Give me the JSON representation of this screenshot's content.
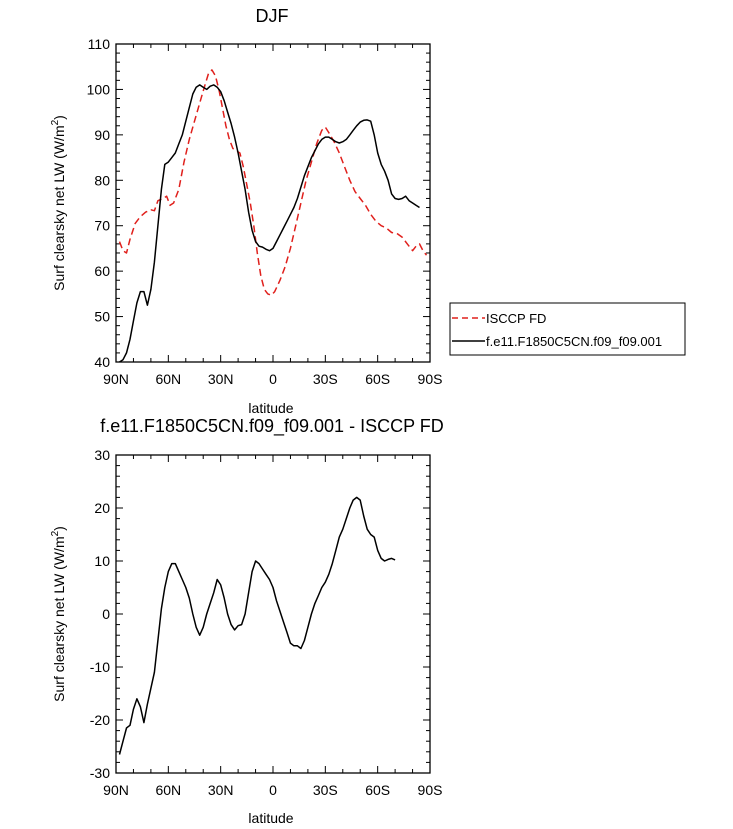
{
  "chart_data": [
    {
      "type": "line",
      "title": "DJF",
      "xlabel": "latitude",
      "ylabel": "Surf clearsky net LW (W/m²)",
      "ylabel_main": "Surf clearsky net LW (W/m",
      "ylabel_sup": "2",
      "ylabel_end": ")",
      "xlim": [
        90,
        -90
      ],
      "ylim": [
        40,
        110
      ],
      "x_ticks": [
        {
          "value": 90,
          "label": "90N"
        },
        {
          "value": 60,
          "label": "60N"
        },
        {
          "value": 30,
          "label": "30N"
        },
        {
          "value": 0,
          "label": "0"
        },
        {
          "value": -30,
          "label": "30S"
        },
        {
          "value": -60,
          "label": "60S"
        },
        {
          "value": -90,
          "label": "90S"
        }
      ],
      "y_ticks": [
        40,
        50,
        60,
        70,
        80,
        90,
        100,
        110
      ],
      "legend_position": "right",
      "series": [
        {
          "name": "ISCCP FD",
          "color": "#e0201c",
          "dash": "dashed",
          "points": [
            [
              88,
              66.5
            ],
            [
              86,
              64.5
            ],
            [
              84,
              64
            ],
            [
              82,
              67
            ],
            [
              79,
              70.5
            ],
            [
              76,
              72
            ],
            [
              73,
              73
            ],
            [
              70,
              73.5
            ],
            [
              68,
              73.3
            ],
            [
              66,
              75.5
            ],
            [
              63,
              76
            ],
            [
              61,
              76.5
            ],
            [
              59,
              74.5
            ],
            [
              57,
              75
            ],
            [
              54,
              78
            ],
            [
              51,
              84
            ],
            [
              48,
              89
            ],
            [
              45,
              93
            ],
            [
              42,
              97
            ],
            [
              39,
              101
            ],
            [
              37,
              103.5
            ],
            [
              35,
              104.3
            ],
            [
              33,
              103
            ],
            [
              31,
              100
            ],
            [
              29,
              96
            ],
            [
              27,
              92
            ],
            [
              25,
              89
            ],
            [
              23,
              87
            ],
            [
              21,
              86.5
            ],
            [
              19,
              86
            ],
            [
              17,
              83
            ],
            [
              15,
              79
            ],
            [
              13,
              75
            ],
            [
              11,
              70
            ],
            [
              9,
              64
            ],
            [
              7,
              59
            ],
            [
              5,
              56
            ],
            [
              3,
              55
            ],
            [
              1,
              54.7
            ],
            [
              -1,
              55.5
            ],
            [
              -4,
              58
            ],
            [
              -7,
              61
            ],
            [
              -10,
              65
            ],
            [
              -13,
              70
            ],
            [
              -16,
              75
            ],
            [
              -19,
              80
            ],
            [
              -22,
              84
            ],
            [
              -25,
              88
            ],
            [
              -28,
              91
            ],
            [
              -30,
              91.7
            ],
            [
              -32,
              90.5
            ],
            [
              -35,
              88.5
            ],
            [
              -38,
              86
            ],
            [
              -41,
              83
            ],
            [
              -44,
              80
            ],
            [
              -47,
              77.5
            ],
            [
              -50,
              76
            ],
            [
              -53,
              74.5
            ],
            [
              -56,
              72.5
            ],
            [
              -59,
              71
            ],
            [
              -62,
              70
            ],
            [
              -65,
              69.5
            ],
            [
              -68,
              68.5
            ],
            [
              -71,
              68.3
            ],
            [
              -74,
              67.5
            ],
            [
              -77,
              66
            ],
            [
              -80,
              64.5
            ],
            [
              -82,
              65.5
            ],
            [
              -84,
              66
            ],
            [
              -86,
              64.5
            ],
            [
              -88,
              63.5
            ]
          ]
        },
        {
          "name": "f.e11.F1850C5CN.f09_f09.001",
          "color": "#000000",
          "dash": "solid",
          "points": [
            [
              88,
              40
            ],
            [
              86,
              40.5
            ],
            [
              84,
              42
            ],
            [
              82,
              45
            ],
            [
              80,
              49
            ],
            [
              78,
              53
            ],
            [
              76,
              55.5
            ],
            [
              74,
              55.5
            ],
            [
              72,
              52.5
            ],
            [
              70,
              56
            ],
            [
              68,
              62
            ],
            [
              66,
              70
            ],
            [
              64,
              78
            ],
            [
              62,
              83.5
            ],
            [
              60,
              84
            ],
            [
              58,
              85
            ],
            [
              56,
              86
            ],
            [
              54,
              88
            ],
            [
              52,
              90
            ],
            [
              50,
              93
            ],
            [
              48,
              96
            ],
            [
              46,
              99
            ],
            [
              44,
              100.5
            ],
            [
              42,
              101
            ],
            [
              40,
              100.5
            ],
            [
              38,
              100
            ],
            [
              36,
              100.7
            ],
            [
              34,
              101
            ],
            [
              32,
              100.5
            ],
            [
              30,
              99.5
            ],
            [
              28,
              97.5
            ],
            [
              26,
              95
            ],
            [
              24,
              92.5
            ],
            [
              22,
              89.5
            ],
            [
              20,
              86
            ],
            [
              18,
              82
            ],
            [
              16,
              78
            ],
            [
              14,
              73
            ],
            [
              12,
              69
            ],
            [
              10,
              66.5
            ],
            [
              8,
              65.5
            ],
            [
              6,
              65.3
            ],
            [
              4,
              64.8
            ],
            [
              2,
              64.5
            ],
            [
              0,
              65
            ],
            [
              -2,
              66.5
            ],
            [
              -4,
              68
            ],
            [
              -6,
              69.5
            ],
            [
              -8,
              71
            ],
            [
              -10,
              72.5
            ],
            [
              -12,
              74
            ],
            [
              -14,
              76
            ],
            [
              -16,
              78.5
            ],
            [
              -18,
              81
            ],
            [
              -20,
              83
            ],
            [
              -22,
              85
            ],
            [
              -24,
              86.5
            ],
            [
              -26,
              88
            ],
            [
              -28,
              89
            ],
            [
              -30,
              89.5
            ],
            [
              -32,
              89.5
            ],
            [
              -34,
              89
            ],
            [
              -36,
              88.5
            ],
            [
              -38,
              88.2
            ],
            [
              -40,
              88.5
            ],
            [
              -42,
              89
            ],
            [
              -44,
              90
            ],
            [
              -46,
              91
            ],
            [
              -48,
              92
            ],
            [
              -50,
              92.8
            ],
            [
              -52,
              93.2
            ],
            [
              -54,
              93.3
            ],
            [
              -56,
              93
            ],
            [
              -58,
              90
            ],
            [
              -60,
              86
            ],
            [
              -62,
              83.5
            ],
            [
              -64,
              82
            ],
            [
              -66,
              80
            ],
            [
              -68,
              77
            ],
            [
              -70,
              76
            ],
            [
              -72,
              75.8
            ],
            [
              -74,
              76
            ],
            [
              -76,
              76.5
            ],
            [
              -78,
              75.5
            ],
            [
              -80,
              75
            ],
            [
              -82,
              74.5
            ],
            [
              -84,
              74
            ]
          ]
        }
      ]
    },
    {
      "type": "line",
      "title": "f.e11.F1850C5CN.f09_f09.001 - ISCCP FD",
      "xlabel": "latitude",
      "ylabel": "Surf clearsky net LW (W/m²)",
      "ylabel_main": "Surf clearsky net LW (W/m",
      "ylabel_sup": "2",
      "ylabel_end": ")",
      "xlim": [
        90,
        -90
      ],
      "ylim": [
        -30,
        30
      ],
      "x_ticks": [
        {
          "value": 90,
          "label": "90N"
        },
        {
          "value": 60,
          "label": "60N"
        },
        {
          "value": 30,
          "label": "30N"
        },
        {
          "value": 0,
          "label": "0"
        },
        {
          "value": -30,
          "label": "30S"
        },
        {
          "value": -60,
          "label": "60S"
        },
        {
          "value": -90,
          "label": "90S"
        }
      ],
      "y_ticks": [
        -30,
        -20,
        -10,
        0,
        10,
        20,
        30
      ],
      "series": [
        {
          "name": "",
          "color": "#000000",
          "dash": "solid",
          "points": [
            [
              88,
              -26.5
            ],
            [
              86,
              -24
            ],
            [
              84,
              -21.5
            ],
            [
              82,
              -21
            ],
            [
              80,
              -18
            ],
            [
              78,
              -16
            ],
            [
              76,
              -17.5
            ],
            [
              74,
              -20.5
            ],
            [
              72,
              -17
            ],
            [
              70,
              -14
            ],
            [
              68,
              -11
            ],
            [
              66,
              -5
            ],
            [
              64,
              1
            ],
            [
              62,
              5
            ],
            [
              60,
              8
            ],
            [
              58,
              9.5
            ],
            [
              56,
              9.5
            ],
            [
              54,
              8
            ],
            [
              52,
              6.5
            ],
            [
              50,
              5
            ],
            [
              48,
              3
            ],
            [
              46,
              0
            ],
            [
              44,
              -2.5
            ],
            [
              42,
              -4
            ],
            [
              40,
              -2.5
            ],
            [
              38,
              0
            ],
            [
              36,
              2
            ],
            [
              34,
              4
            ],
            [
              32,
              6.5
            ],
            [
              30,
              5.5
            ],
            [
              28,
              3
            ],
            [
              26,
              0
            ],
            [
              24,
              -2
            ],
            [
              22,
              -3
            ],
            [
              20,
              -2.2
            ],
            [
              18,
              -2
            ],
            [
              16,
              0
            ],
            [
              14,
              4
            ],
            [
              12,
              8
            ],
            [
              10,
              10
            ],
            [
              8,
              9.5
            ],
            [
              6,
              8.5
            ],
            [
              4,
              7.5
            ],
            [
              2,
              6.5
            ],
            [
              0,
              5
            ],
            [
              -2,
              2.5
            ],
            [
              -4,
              0.5
            ],
            [
              -6,
              -1.5
            ],
            [
              -8,
              -3.5
            ],
            [
              -10,
              -5.5
            ],
            [
              -12,
              -6
            ],
            [
              -14,
              -6
            ],
            [
              -16,
              -6.5
            ],
            [
              -18,
              -5
            ],
            [
              -20,
              -2.5
            ],
            [
              -22,
              0
            ],
            [
              -24,
              2
            ],
            [
              -26,
              3.5
            ],
            [
              -28,
              5
            ],
            [
              -30,
              6
            ],
            [
              -32,
              7.5
            ],
            [
              -34,
              9.5
            ],
            [
              -36,
              12
            ],
            [
              -38,
              14.5
            ],
            [
              -40,
              16
            ],
            [
              -42,
              18
            ],
            [
              -44,
              20
            ],
            [
              -46,
              21.5
            ],
            [
              -48,
              22
            ],
            [
              -50,
              21.5
            ],
            [
              -52,
              18.5
            ],
            [
              -54,
              16
            ],
            [
              -56,
              15
            ],
            [
              -58,
              14.5
            ],
            [
              -60,
              12
            ],
            [
              -62,
              10.5
            ],
            [
              -64,
              10
            ],
            [
              -66,
              10.3
            ],
            [
              -68,
              10.5
            ],
            [
              -70,
              10.2
            ]
          ]
        }
      ]
    }
  ]
}
